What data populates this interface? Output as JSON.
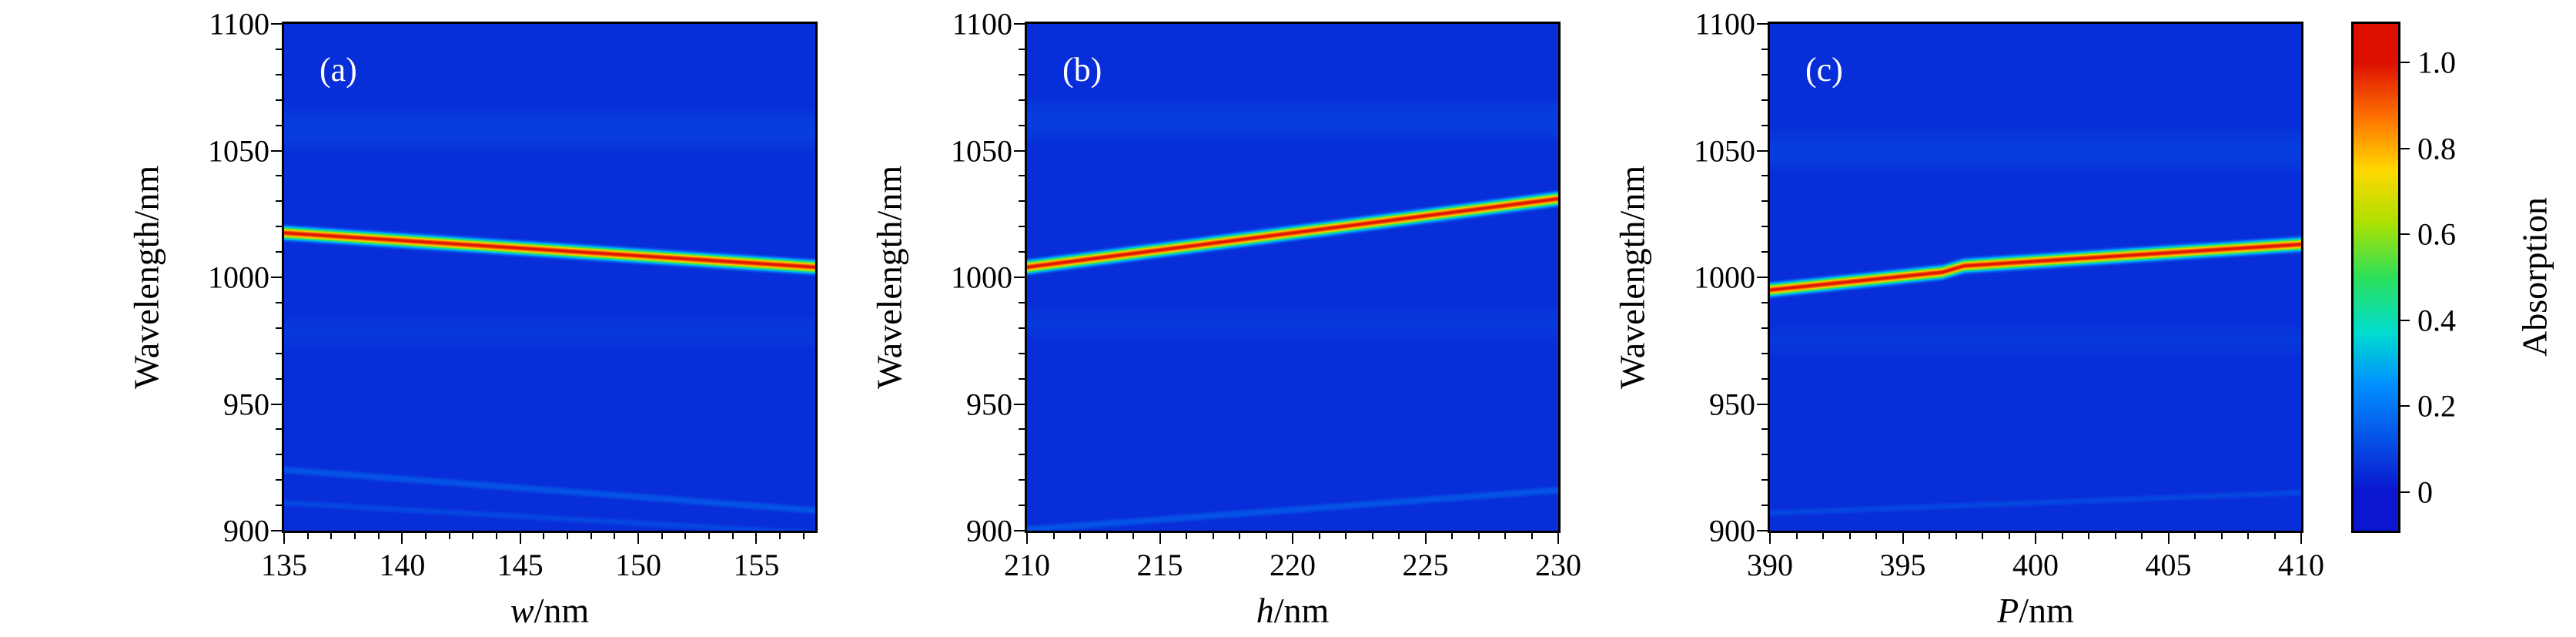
{
  "figure": {
    "background": "#ffffff",
    "colorbar": {
      "label": "Absorption",
      "ticks": [
        {
          "v": 1.0,
          "label": "1.0"
        },
        {
          "v": 0.8,
          "label": "0.8"
        },
        {
          "v": 0.6,
          "label": "0.6"
        },
        {
          "v": 0.4,
          "label": "0.4"
        },
        {
          "v": 0.2,
          "label": "0.2"
        },
        {
          "v": 0.0,
          "label": "0"
        }
      ],
      "bar_range": [
        -0.09,
        1.09
      ],
      "colormap_stops": [
        [
          0.0,
          "#0a16cf"
        ],
        [
          0.25,
          "#0090ff"
        ],
        [
          0.37,
          "#00dcd0"
        ],
        [
          0.5,
          "#2ce05a"
        ],
        [
          0.63,
          "#b0e000"
        ],
        [
          0.75,
          "#ffd800"
        ],
        [
          0.87,
          "#ff7400"
        ],
        [
          1.0,
          "#dd1000"
        ]
      ]
    }
  },
  "chart_data": [
    {
      "type": "heatmap",
      "panel": "(a)",
      "xlabel": "w/nm",
      "xlabel_var": "w",
      "xlabel_unit": "/nm",
      "ylabel": "Wavelength/nm",
      "zlabel": "Absorption",
      "xlim": [
        135,
        157.5
      ],
      "ylim": [
        900,
        1100
      ],
      "zlim": [
        0,
        1
      ],
      "xticks": [
        135,
        140,
        145,
        150,
        155
      ],
      "yticks": [
        900,
        950,
        1000,
        1050,
        1100
      ],
      "x_minor_step": 1,
      "y_minor_step": 10,
      "background_value": 0.05,
      "features": [
        {
          "name": "main-resonance",
          "peak": 1.0,
          "width_nm": 2.2,
          "points": [
            [
              135,
              1017.5
            ],
            [
              157.5,
              1004
            ]
          ]
        },
        {
          "name": "weak-mode-1",
          "peak": 0.13,
          "width_nm": 2.0,
          "points": [
            [
              135,
              924
            ],
            [
              157.5,
              908
            ]
          ]
        },
        {
          "name": "weak-mode-2",
          "peak": 0.1,
          "width_nm": 2.0,
          "points": [
            [
              135,
              911
            ],
            [
              157.5,
              899
            ]
          ]
        },
        {
          "name": "broad-band-1",
          "peak": 0.08,
          "width_nm": 14,
          "points": [
            [
              135,
              1058
            ],
            [
              157.5,
              1058
            ]
          ]
        },
        {
          "name": "broad-band-2",
          "peak": 0.07,
          "width_nm": 12,
          "points": [
            [
              135,
              978
            ],
            [
              157.5,
              978
            ]
          ]
        }
      ]
    },
    {
      "type": "heatmap",
      "panel": "(b)",
      "xlabel": "h/nm",
      "xlabel_var": "h",
      "xlabel_unit": "/nm",
      "ylabel": "Wavelength/nm",
      "zlabel": "Absorption",
      "xlim": [
        210,
        230
      ],
      "ylim": [
        900,
        1100
      ],
      "zlim": [
        0,
        1
      ],
      "xticks": [
        210,
        215,
        220,
        225,
        230
      ],
      "yticks": [
        900,
        950,
        1000,
        1050,
        1100
      ],
      "x_minor_step": 1,
      "y_minor_step": 10,
      "background_value": 0.05,
      "features": [
        {
          "name": "main-resonance",
          "peak": 1.0,
          "width_nm": 2.2,
          "points": [
            [
              210,
              1004
            ],
            [
              230,
              1031
            ]
          ]
        },
        {
          "name": "weak-mode-1",
          "peak": 0.13,
          "width_nm": 2.0,
          "points": [
            [
              210,
              900.5
            ],
            [
              230,
              916
            ]
          ]
        },
        {
          "name": "broad-band-1",
          "peak": 0.08,
          "width_nm": 14,
          "points": [
            [
              210,
              1062
            ],
            [
              230,
              1062
            ]
          ]
        },
        {
          "name": "broad-band-2",
          "peak": 0.07,
          "width_nm": 12,
          "points": [
            [
              210,
              982
            ],
            [
              230,
              982
            ]
          ]
        }
      ]
    },
    {
      "type": "heatmap",
      "panel": "(c)",
      "xlabel": "P/nm",
      "xlabel_var": "P",
      "xlabel_unit": "/nm",
      "ylabel": "Wavelength/nm",
      "zlabel": "Absorption",
      "xlim": [
        390,
        410
      ],
      "ylim": [
        900,
        1100
      ],
      "zlim": [
        0,
        1
      ],
      "xticks": [
        390,
        395,
        400,
        405,
        410
      ],
      "yticks": [
        900,
        950,
        1000,
        1050,
        1100
      ],
      "x_minor_step": 1,
      "y_minor_step": 10,
      "background_value": 0.05,
      "features": [
        {
          "name": "main-resonance",
          "peak": 1.0,
          "width_nm": 2.2,
          "points": [
            [
              390,
              995
            ],
            [
              396.5,
              1002
            ],
            [
              397.3,
              1004.5
            ],
            [
              410,
              1013
            ]
          ]
        },
        {
          "name": "weak-mode-1",
          "peak": 0.1,
          "width_nm": 2.0,
          "points": [
            [
              390,
              907
            ],
            [
              410,
              915
            ]
          ]
        },
        {
          "name": "broad-band-1",
          "peak": 0.08,
          "width_nm": 14,
          "points": [
            [
              390,
              1050
            ],
            [
              410,
              1050
            ]
          ]
        },
        {
          "name": "broad-band-2",
          "peak": 0.07,
          "width_nm": 12,
          "points": [
            [
              390,
              975
            ],
            [
              410,
              975
            ]
          ]
        }
      ]
    }
  ]
}
